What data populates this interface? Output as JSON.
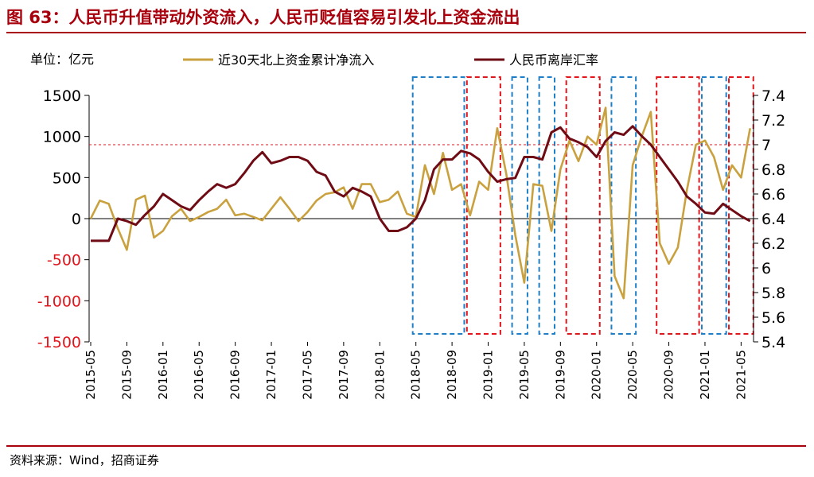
{
  "title": "图 63：人民币升值带动外资流入，人民币贬值容易引发北上资金流出",
  "source": "资料来源：Wind，招商证券",
  "colors": {
    "title": "#a8000c",
    "northbound": "#c9a13f",
    "cnh": "#6e0b14",
    "red_box": "#e0161c",
    "blue_box": "#1f7ec5",
    "axis": "#000000"
  },
  "chart_data": {
    "type": "line",
    "unit_label": "单位：亿元",
    "legend": [
      "近30天北上资金累计净流入",
      "人民币离岸汇率"
    ],
    "legend_position": "top",
    "grid": false,
    "x_ticks": [
      "2015-05",
      "2015-09",
      "2016-01",
      "2016-05",
      "2016-09",
      "2017-01",
      "2017-05",
      "2017-09",
      "2018-01",
      "2018-05",
      "2018-09",
      "2019-01",
      "2019-05",
      "2019-09",
      "2020-01",
      "2020-05",
      "2020-09",
      "2021-01",
      "2021-05"
    ],
    "y_left": {
      "range": [
        -1500,
        1500
      ],
      "ticks": [
        "1500",
        "1000",
        "500",
        "0",
        "-500",
        "-1000",
        "-1500"
      ]
    },
    "y_right": {
      "range": [
        5.4,
        7.4
      ],
      "ticks": [
        "7.4",
        "7.2",
        "7",
        "6.8",
        "6.6",
        "6.4",
        "6.2",
        "6",
        "5.8",
        "5.6",
        "5.4"
      ]
    },
    "reference_line": {
      "axis": "right",
      "value": 7.0,
      "color": "#e0161c",
      "style": "dashed"
    },
    "series": [
      {
        "name": "近30天北上资金累计净流入",
        "axis": "left",
        "points": [
          [
            "2015-05",
            0
          ],
          [
            "2015-06",
            220
          ],
          [
            "2015-07",
            180
          ],
          [
            "2015-08",
            -120
          ],
          [
            "2015-09",
            -380
          ],
          [
            "2015-10",
            230
          ],
          [
            "2015-11",
            280
          ],
          [
            "2015-12",
            -230
          ],
          [
            "2016-01",
            -150
          ],
          [
            "2016-02",
            30
          ],
          [
            "2016-03",
            120
          ],
          [
            "2016-04",
            -30
          ],
          [
            "2016-05",
            20
          ],
          [
            "2016-06",
            80
          ],
          [
            "2016-07",
            120
          ],
          [
            "2016-08",
            230
          ],
          [
            "2016-09",
            40
          ],
          [
            "2016-10",
            60
          ],
          [
            "2016-11",
            20
          ],
          [
            "2016-12",
            -20
          ],
          [
            "2017-01",
            120
          ],
          [
            "2017-02",
            260
          ],
          [
            "2017-03",
            120
          ],
          [
            "2017-04",
            -30
          ],
          [
            "2017-05",
            80
          ],
          [
            "2017-06",
            220
          ],
          [
            "2017-07",
            300
          ],
          [
            "2017-08",
            320
          ],
          [
            "2017-09",
            380
          ],
          [
            "2017-10",
            120
          ],
          [
            "2017-11",
            420
          ],
          [
            "2017-12",
            420
          ],
          [
            "2018-01",
            200
          ],
          [
            "2018-02",
            230
          ],
          [
            "2018-03",
            330
          ],
          [
            "2018-04",
            60
          ],
          [
            "2018-05",
            20
          ],
          [
            "2018-06",
            650
          ],
          [
            "2018-07",
            300
          ],
          [
            "2018-08",
            800
          ],
          [
            "2018-09",
            350
          ],
          [
            "2018-10",
            420
          ],
          [
            "2018-11",
            40
          ],
          [
            "2018-12",
            450
          ],
          [
            "2019-01",
            350
          ],
          [
            "2019-02",
            1100
          ],
          [
            "2019-03",
            550
          ],
          [
            "2019-04",
            -200
          ],
          [
            "2019-05",
            -780
          ],
          [
            "2019-06",
            420
          ],
          [
            "2019-07",
            400
          ],
          [
            "2019-08",
            -150
          ],
          [
            "2019-09",
            600
          ],
          [
            "2019-10",
            950
          ],
          [
            "2019-11",
            700
          ],
          [
            "2019-12",
            1000
          ],
          [
            "2020-01",
            900
          ],
          [
            "2020-02",
            1350
          ],
          [
            "2020-03",
            -700
          ],
          [
            "2020-04",
            -970
          ],
          [
            "2020-05",
            650
          ],
          [
            "2020-06",
            1000
          ],
          [
            "2020-07",
            1300
          ],
          [
            "2020-08",
            -300
          ],
          [
            "2020-09",
            -550
          ],
          [
            "2020-10",
            -350
          ],
          [
            "2020-11",
            350
          ],
          [
            "2020-12",
            900
          ],
          [
            "2021-01",
            950
          ],
          [
            "2021-02",
            750
          ],
          [
            "2021-03",
            350
          ],
          [
            "2021-04",
            650
          ],
          [
            "2021-05",
            500
          ],
          [
            "2021-06",
            1100
          ]
        ]
      },
      {
        "name": "人民币离岸汇率",
        "axis": "right",
        "points": [
          [
            "2015-05",
            6.22
          ],
          [
            "2015-06",
            6.22
          ],
          [
            "2015-07",
            6.22
          ],
          [
            "2015-08",
            6.4
          ],
          [
            "2015-09",
            6.38
          ],
          [
            "2015-10",
            6.35
          ],
          [
            "2015-11",
            6.43
          ],
          [
            "2015-12",
            6.5
          ],
          [
            "2016-01",
            6.6
          ],
          [
            "2016-02",
            6.55
          ],
          [
            "2016-03",
            6.5
          ],
          [
            "2016-04",
            6.47
          ],
          [
            "2016-05",
            6.55
          ],
          [
            "2016-06",
            6.62
          ],
          [
            "2016-07",
            6.68
          ],
          [
            "2016-08",
            6.65
          ],
          [
            "2016-09",
            6.68
          ],
          [
            "2016-10",
            6.77
          ],
          [
            "2016-11",
            6.87
          ],
          [
            "2016-12",
            6.94
          ],
          [
            "2017-01",
            6.85
          ],
          [
            "2017-02",
            6.87
          ],
          [
            "2017-03",
            6.9
          ],
          [
            "2017-04",
            6.9
          ],
          [
            "2017-05",
            6.87
          ],
          [
            "2017-06",
            6.78
          ],
          [
            "2017-07",
            6.75
          ],
          [
            "2017-08",
            6.62
          ],
          [
            "2017-09",
            6.58
          ],
          [
            "2017-10",
            6.65
          ],
          [
            "2017-11",
            6.62
          ],
          [
            "2017-12",
            6.58
          ],
          [
            "2018-01",
            6.4
          ],
          [
            "2018-02",
            6.3
          ],
          [
            "2018-03",
            6.3
          ],
          [
            "2018-04",
            6.33
          ],
          [
            "2018-05",
            6.4
          ],
          [
            "2018-06",
            6.55
          ],
          [
            "2018-07",
            6.8
          ],
          [
            "2018-08",
            6.88
          ],
          [
            "2018-09",
            6.88
          ],
          [
            "2018-10",
            6.95
          ],
          [
            "2018-11",
            6.93
          ],
          [
            "2018-12",
            6.88
          ],
          [
            "2019-01",
            6.78
          ],
          [
            "2019-02",
            6.7
          ],
          [
            "2019-03",
            6.72
          ],
          [
            "2019-04",
            6.73
          ],
          [
            "2019-05",
            6.9
          ],
          [
            "2019-06",
            6.9
          ],
          [
            "2019-07",
            6.88
          ],
          [
            "2019-08",
            7.1
          ],
          [
            "2019-09",
            7.14
          ],
          [
            "2019-10",
            7.05
          ],
          [
            "2019-11",
            7.02
          ],
          [
            "2019-12",
            6.98
          ],
          [
            "2020-01",
            6.9
          ],
          [
            "2020-02",
            7.03
          ],
          [
            "2020-03",
            7.1
          ],
          [
            "2020-04",
            7.08
          ],
          [
            "2020-05",
            7.15
          ],
          [
            "2020-06",
            7.07
          ],
          [
            "2020-07",
            7.0
          ],
          [
            "2020-08",
            6.9
          ],
          [
            "2020-09",
            6.8
          ],
          [
            "2020-10",
            6.7
          ],
          [
            "2020-11",
            6.58
          ],
          [
            "2020-12",
            6.52
          ],
          [
            "2021-01",
            6.45
          ],
          [
            "2021-02",
            6.44
          ],
          [
            "2021-03",
            6.52
          ],
          [
            "2021-04",
            6.47
          ],
          [
            "2021-05",
            6.42
          ],
          [
            "2021-06",
            6.38
          ]
        ]
      }
    ],
    "highlight_boxes": [
      {
        "from": "2018-05",
        "to": "2018-10",
        "color": "blue",
        "meaning": "appreciation / inflow"
      },
      {
        "from": "2018-11",
        "to": "2019-02",
        "color": "red",
        "meaning": "depreciation / outflow"
      },
      {
        "from": "2019-04",
        "to": "2019-05",
        "color": "blue",
        "meaning": "appreciation / inflow"
      },
      {
        "from": "2019-07",
        "to": "2019-08",
        "color": "blue",
        "meaning": "appreciation / inflow"
      },
      {
        "from": "2019-10",
        "to": "2020-01",
        "color": "red",
        "meaning": "depreciation / outflow"
      },
      {
        "from": "2020-03",
        "to": "2020-05",
        "color": "blue",
        "meaning": "appreciation / inflow"
      },
      {
        "from": "2020-08",
        "to": "2020-12",
        "color": "red",
        "meaning": "depreciation / outflow"
      },
      {
        "from": "2021-01",
        "to": "2021-03",
        "color": "blue",
        "meaning": "appreciation / inflow"
      },
      {
        "from": "2021-04",
        "to": "2021-06",
        "color": "red",
        "meaning": "depreciation / outflow"
      }
    ]
  }
}
